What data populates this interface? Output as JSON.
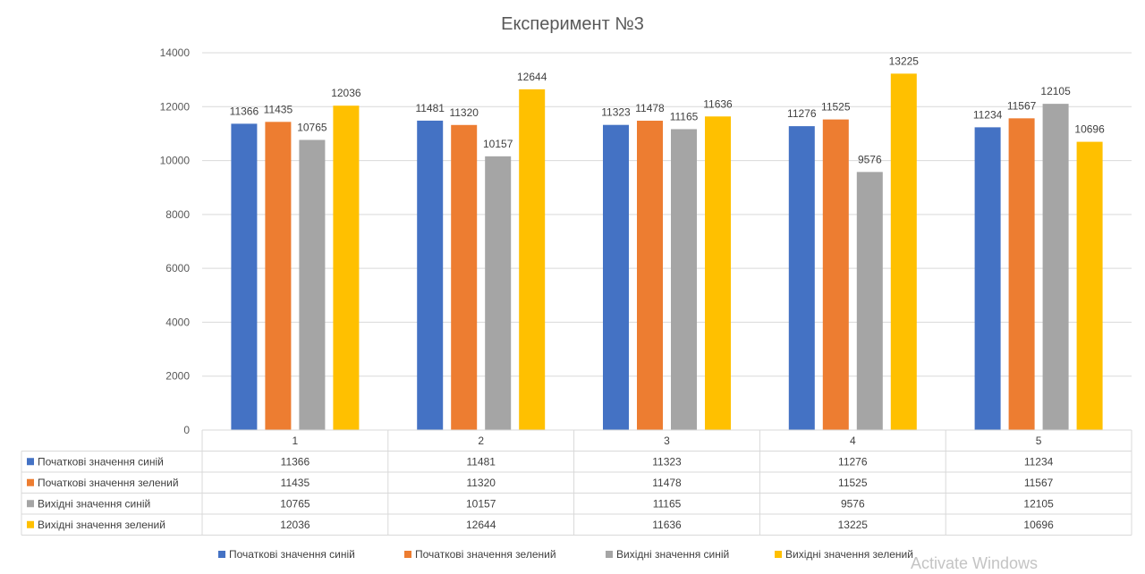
{
  "chart_data": {
    "type": "bar",
    "title": "Експеримент №3",
    "categories": [
      "1",
      "2",
      "3",
      "4",
      "5"
    ],
    "series": [
      {
        "name": "Початкові значення синій",
        "color": "#4472C4",
        "values": [
          11366,
          11481,
          11323,
          11276,
          11234
        ]
      },
      {
        "name": "Початкові значення зелений",
        "color": "#ED7D31",
        "values": [
          11435,
          11320,
          11478,
          11525,
          11567
        ]
      },
      {
        "name": "Вихідні значення синій",
        "color": "#A5A5A5",
        "values": [
          10765,
          10157,
          11165,
          9576,
          12105
        ]
      },
      {
        "name": "Вихідні значення зелений",
        "color": "#FFC000",
        "values": [
          12036,
          12644,
          11636,
          13225,
          10696
        ]
      }
    ],
    "ylim": [
      0,
      14000
    ],
    "yticks": [
      0,
      2000,
      4000,
      6000,
      8000,
      10000,
      12000,
      14000
    ],
    "grid": true,
    "data_table": true,
    "legend": "bottom"
  },
  "watermark": "Activate Windows"
}
